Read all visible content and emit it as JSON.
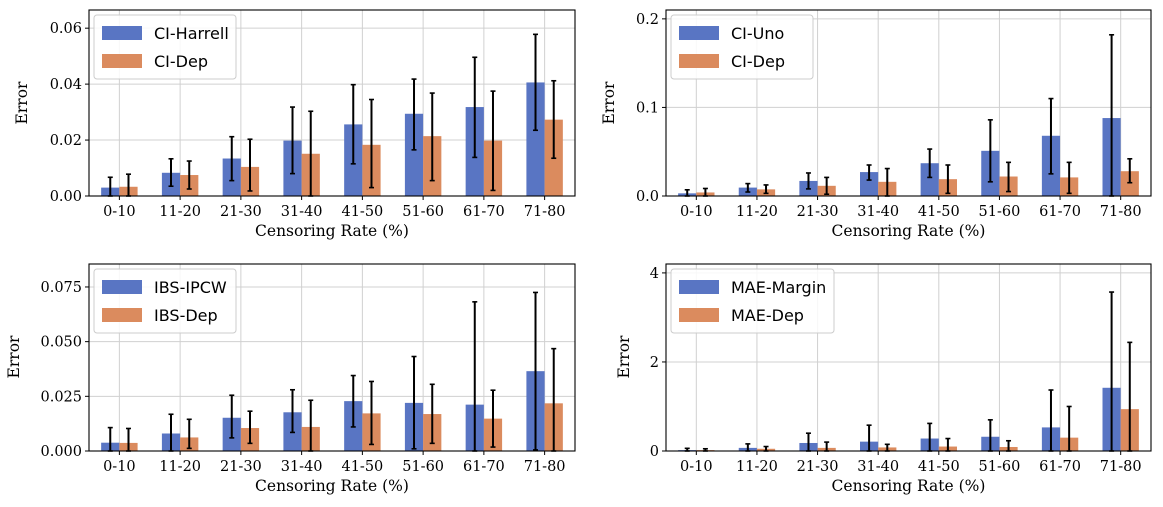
{
  "colors": {
    "series_a": "#5975c3",
    "series_b": "#db8b5e",
    "grid": "#d0d0d0",
    "error_bar": "#000000"
  },
  "chart_data": [
    {
      "type": "bar",
      "title": "",
      "xlabel": "Censoring Rate (%)",
      "ylabel": "Error",
      "categories": [
        "0-10",
        "11-20",
        "21-30",
        "31-40",
        "41-50",
        "51-60",
        "61-70",
        "71-80"
      ],
      "ylim": [
        0,
        0.0665
      ],
      "yticks": [
        0,
        0.02,
        0.04,
        0.06
      ],
      "ytick_labels": [
        "0.00",
        "0.02",
        "0.04",
        "0.06"
      ],
      "grid": true,
      "legend_position": "upper-left",
      "series": [
        {
          "name": "CI-Harrell",
          "values": [
            0.003,
            0.0083,
            0.0134,
            0.0198,
            0.0256,
            0.0294,
            0.0318,
            0.0406
          ],
          "err_low": [
            0,
            0.0035,
            0.0055,
            0.008,
            0.0115,
            0.0165,
            0.0138,
            0.0235
          ],
          "err_high": [
            0.0067,
            0.0133,
            0.0212,
            0.0318,
            0.0398,
            0.0418,
            0.0496,
            0.0578
          ]
        },
        {
          "name": "CI-Dep",
          "values": [
            0.0033,
            0.0075,
            0.0104,
            0.0151,
            0.0183,
            0.0214,
            0.0198,
            0.0273
          ],
          "err_low": [
            0,
            0.0025,
            0.0018,
            0.0,
            0.003,
            0.0055,
            0.002,
            0.0135
          ],
          "err_high": [
            0.0078,
            0.0125,
            0.0203,
            0.0303,
            0.0345,
            0.0368,
            0.0375,
            0.0412
          ]
        }
      ]
    },
    {
      "type": "bar",
      "title": "",
      "xlabel": "Censoring Rate (%)",
      "ylabel": "Error",
      "categories": [
        "0-10",
        "11-20",
        "21-30",
        "31-40",
        "41-50",
        "51-60",
        "61-70",
        "71-80"
      ],
      "ylim": [
        0,
        0.21
      ],
      "yticks": [
        0,
        0.1,
        0.2
      ],
      "ytick_labels": [
        "0.0",
        "0.1",
        "0.2"
      ],
      "grid": true,
      "legend_position": "upper-left",
      "series": [
        {
          "name": "CI-Uno",
          "values": [
            0.003,
            0.0095,
            0.017,
            0.027,
            0.037,
            0.051,
            0.068,
            0.088
          ],
          "err_low": [
            0,
            0.0045,
            0.008,
            0.018,
            0.021,
            0.016,
            0.025,
            0.0
          ],
          "err_high": [
            0.007,
            0.014,
            0.026,
            0.035,
            0.053,
            0.086,
            0.11,
            0.182
          ]
        },
        {
          "name": "CI-Dep",
          "values": [
            0.004,
            0.0075,
            0.0115,
            0.016,
            0.019,
            0.022,
            0.021,
            0.028
          ],
          "err_low": [
            0,
            0.003,
            0.002,
            0.0,
            0.003,
            0.005,
            0.003,
            0.015
          ],
          "err_high": [
            0.0085,
            0.0125,
            0.021,
            0.031,
            0.035,
            0.038,
            0.038,
            0.042
          ]
        }
      ]
    },
    {
      "type": "bar",
      "title": "",
      "xlabel": "Censoring Rate (%)",
      "ylabel": "Error",
      "categories": [
        "0-10",
        "11-20",
        "21-30",
        "31-40",
        "41-50",
        "51-60",
        "61-70",
        "71-80"
      ],
      "ylim": [
        0,
        0.0855
      ],
      "yticks": [
        0,
        0.025,
        0.05,
        0.075
      ],
      "ytick_labels": [
        "0.000",
        "0.025",
        "0.050",
        "0.075"
      ],
      "grid": true,
      "legend_position": "upper-left",
      "series": [
        {
          "name": "IBS-IPCW",
          "values": [
            0.0038,
            0.008,
            0.0152,
            0.0177,
            0.0228,
            0.022,
            0.0212,
            0.0365
          ],
          "err_low": [
            0,
            0.0,
            0.006,
            0.0085,
            0.011,
            0.001,
            0.0,
            0.0005
          ],
          "err_high": [
            0.0107,
            0.0168,
            0.0255,
            0.028,
            0.0345,
            0.0432,
            0.0682,
            0.0725
          ]
        },
        {
          "name": "IBS-Dep",
          "values": [
            0.0037,
            0.0062,
            0.0105,
            0.011,
            0.0172,
            0.0169,
            0.0148,
            0.0218
          ],
          "err_low": [
            0,
            0.0012,
            0.0035,
            0.0,
            0.003,
            0.0035,
            0.0018,
            0.0
          ],
          "err_high": [
            0.0103,
            0.0145,
            0.0182,
            0.0232,
            0.0318,
            0.0305,
            0.0278,
            0.0468
          ]
        }
      ]
    },
    {
      "type": "bar",
      "title": "",
      "xlabel": "Censoring Rate (%)",
      "ylabel": "Error",
      "categories": [
        "0-10",
        "11-20",
        "21-30",
        "31-40",
        "41-50",
        "51-60",
        "61-70",
        "71-80"
      ],
      "ylim": [
        0,
        4.2
      ],
      "yticks": [
        0,
        2,
        4
      ],
      "ytick_labels": [
        "0",
        "2",
        "4"
      ],
      "grid": true,
      "legend_position": "upper-left",
      "series": [
        {
          "name": "MAE-Margin",
          "values": [
            0.02,
            0.07,
            0.18,
            0.21,
            0.28,
            0.32,
            0.53,
            1.42
          ],
          "err_low": [
            0,
            0,
            0,
            0,
            0,
            0,
            0,
            0
          ],
          "err_high": [
            0.06,
            0.16,
            0.4,
            0.58,
            0.62,
            0.7,
            1.37,
            3.57
          ]
        },
        {
          "name": "MAE-Dep",
          "values": [
            0.02,
            0.05,
            0.07,
            0.08,
            0.1,
            0.09,
            0.3,
            0.94
          ],
          "err_low": [
            0,
            0,
            0,
            0,
            0,
            0,
            0,
            0
          ],
          "err_high": [
            0.05,
            0.1,
            0.2,
            0.15,
            0.28,
            0.23,
            1.0,
            2.44
          ]
        }
      ]
    }
  ]
}
